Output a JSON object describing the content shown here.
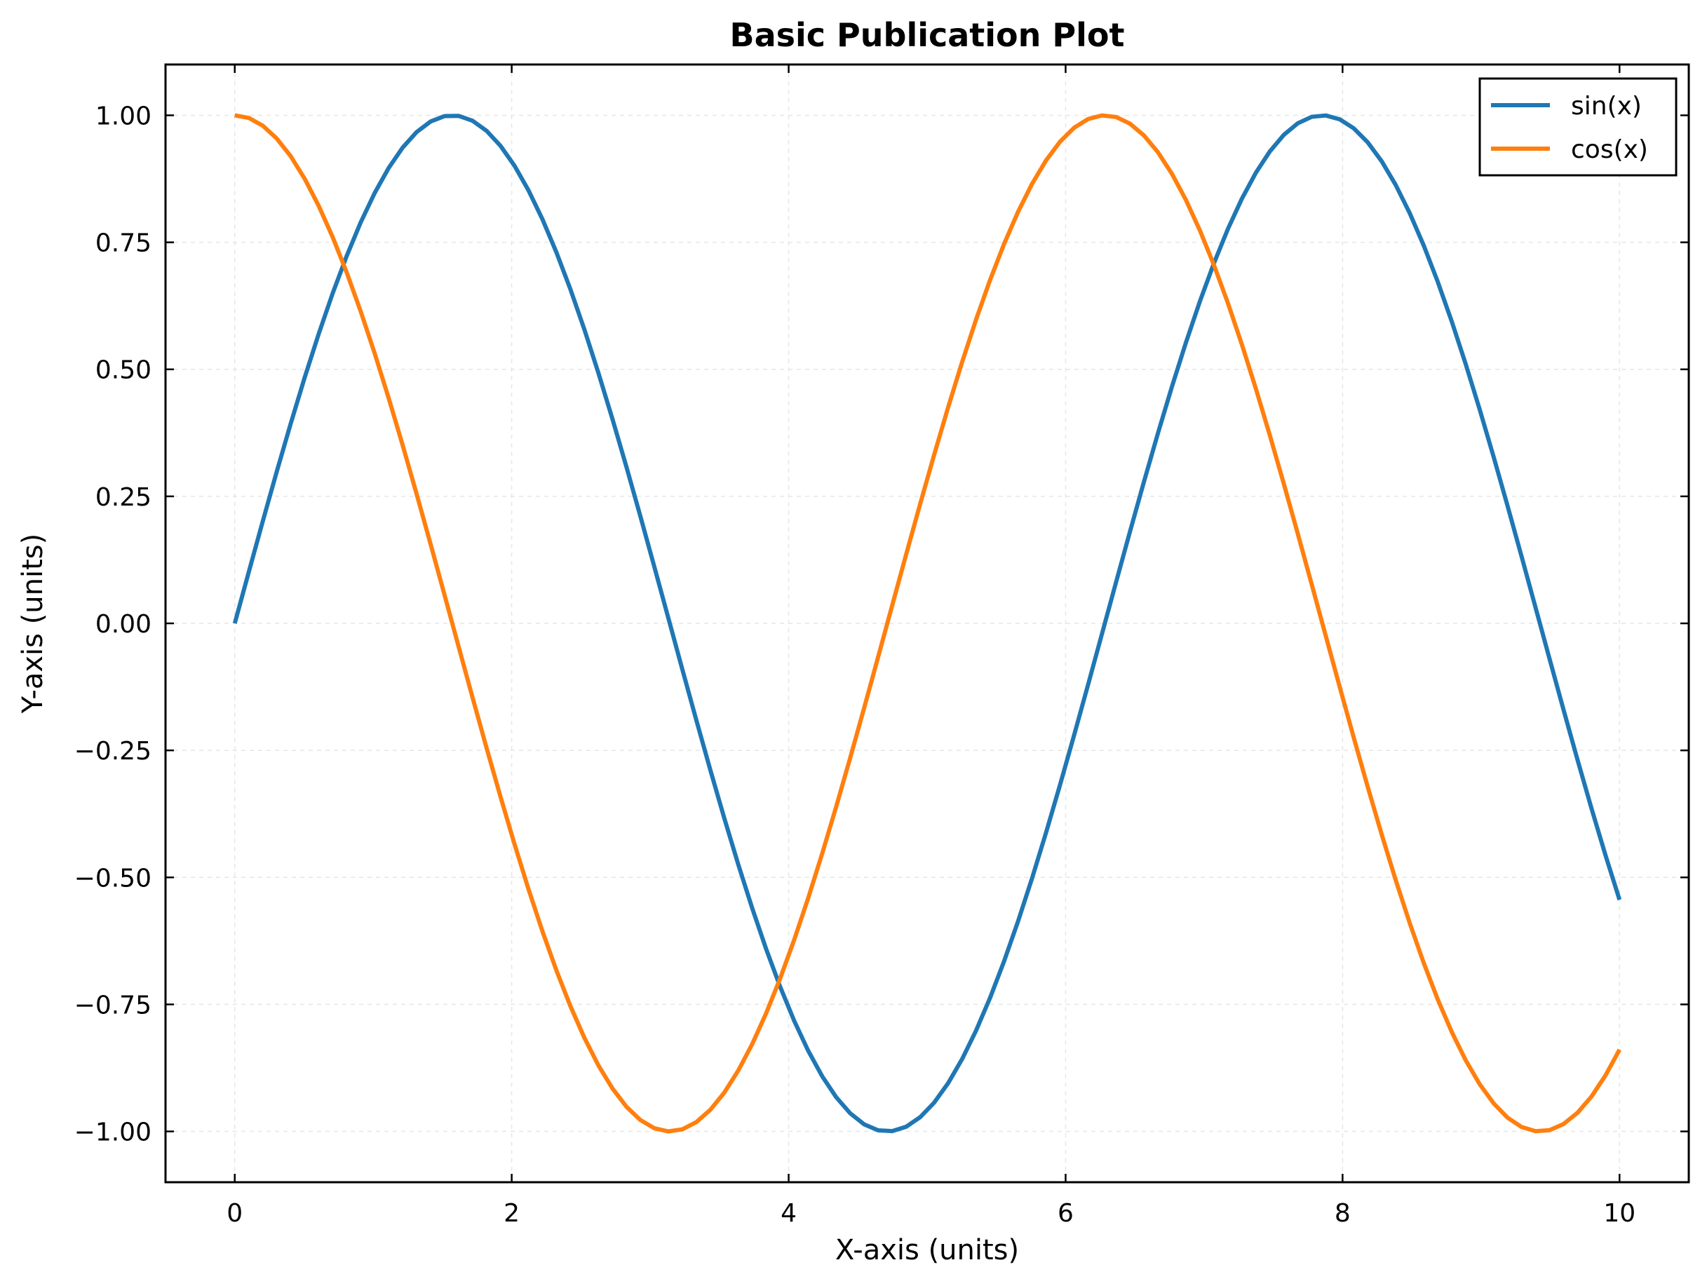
{
  "chart_data": {
    "type": "line",
    "title": "Basic Publication Plot",
    "xlabel": "X-axis (units)",
    "ylabel": "Y-axis (units)",
    "xlim": [
      -0.5,
      10.5
    ],
    "ylim": [
      -1.1,
      1.1
    ],
    "x_domain": [
      0,
      10
    ],
    "samples": 100,
    "xticks": [
      0,
      2,
      4,
      6,
      8,
      10
    ],
    "xtick_labels": [
      "0",
      "2",
      "4",
      "6",
      "8",
      "10"
    ],
    "yticks": [
      1.0,
      0.75,
      0.5,
      0.25,
      0.0,
      -0.25,
      -0.5,
      -0.75,
      -1.0
    ],
    "ytick_labels": [
      "1.00",
      "0.75",
      "0.50",
      "0.25",
      "0.00",
      "−0.25",
      "−0.50",
      "−0.75",
      "−1.00"
    ],
    "grid": true,
    "legend_position": "top-right",
    "series": [
      {
        "name": "sin(x)",
        "function": "sin",
        "color": "#1f77b4"
      },
      {
        "name": "cos(x)",
        "function": "cos",
        "color": "#ff7f0e"
      }
    ]
  }
}
